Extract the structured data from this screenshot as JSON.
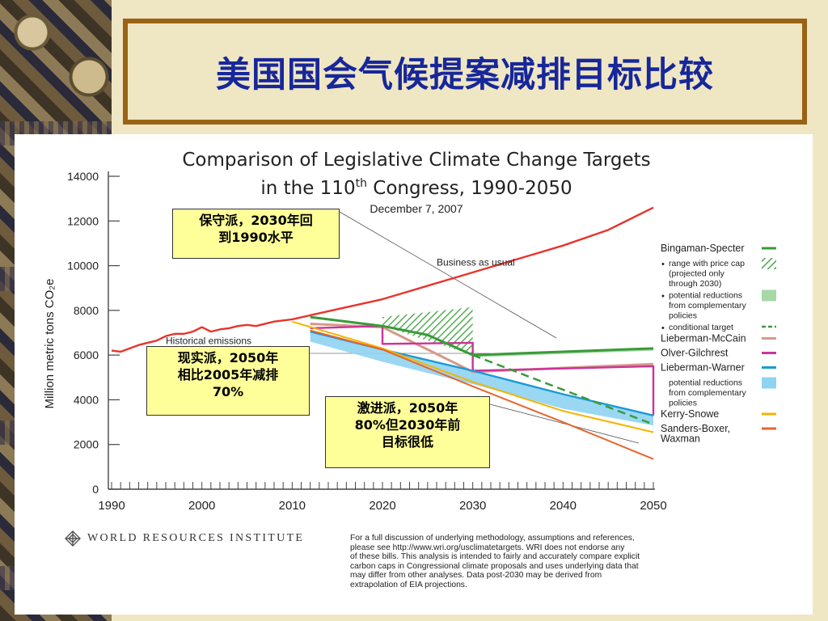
{
  "slide": {
    "title": "美国国会气候提案减排目标比较",
    "callouts": [
      {
        "id": "conservative",
        "lines": [
          "保守派，2030年回",
          "到1990水平"
        ]
      },
      {
        "id": "realist",
        "lines": [
          "现实派，2050年",
          "相比2005年减排",
          "70%"
        ]
      },
      {
        "id": "radical",
        "lines": [
          "激进派，2050年",
          "80%但2030年前",
          "目标很低"
        ]
      }
    ]
  },
  "chart_data": {
    "type": "line",
    "title": "Comparison of Legislative Climate Change Targets",
    "title_line2_prefix": "in the 110",
    "title_line2_sup": "th",
    "title_line2_suffix": " Congress, 1990-2050",
    "subtitle": "December 7, 2007",
    "ylabel": "Million metric tons CO₂e",
    "xlim": [
      1990,
      2050
    ],
    "ylim": [
      0,
      14000
    ],
    "x_ticks": [
      1990,
      2000,
      2010,
      2020,
      2030,
      2040,
      2050
    ],
    "y_ticks": [
      0,
      2000,
      4000,
      6000,
      8000,
      10000,
      12000,
      14000
    ],
    "annotations": [
      {
        "text": "Business as usual",
        "x": 2026,
        "y": 10000
      },
      {
        "text": "Historical emissions",
        "x": 1996,
        "y": 6500
      }
    ],
    "colors": {
      "bau": "#e8342c",
      "bingaman": "#3a9a3a",
      "bingaman_hatch": "#4aa84a",
      "bingaman_comp": "#a8d8a8",
      "lieberman_mccain": "#d49a88",
      "olver": "#cc3399",
      "lw": "#1a9ad6",
      "lw_band": "#8fd3f2",
      "kerry": "#f5b400",
      "sanders": "#e8642c"
    },
    "series": [
      {
        "key": "bau",
        "points": [
          [
            1990,
            6200
          ],
          [
            1991,
            6150
          ],
          [
            1992,
            6300
          ],
          [
            1993,
            6450
          ],
          [
            1994,
            6550
          ],
          [
            1995,
            6650
          ],
          [
            1996,
            6850
          ],
          [
            1997,
            6950
          ],
          [
            1998,
            6950
          ],
          [
            1999,
            7050
          ],
          [
            2000,
            7250
          ],
          [
            2001,
            7050
          ],
          [
            2002,
            7150
          ],
          [
            2003,
            7200
          ],
          [
            2004,
            7300
          ],
          [
            2005,
            7350
          ],
          [
            2006,
            7300
          ],
          [
            2007,
            7400
          ],
          [
            2008,
            7500
          ],
          [
            2010,
            7600
          ],
          [
            2015,
            8050
          ],
          [
            2020,
            8500
          ],
          [
            2025,
            9100
          ],
          [
            2030,
            9700
          ],
          [
            2035,
            10300
          ],
          [
            2040,
            10900
          ],
          [
            2045,
            11600
          ],
          [
            2050,
            12600
          ]
        ]
      },
      {
        "key": "lieberman_mccain",
        "points": [
          [
            2012,
            7400
          ],
          [
            2020,
            7250
          ],
          [
            2030,
            5250
          ],
          [
            2050,
            5600
          ]
        ]
      },
      {
        "key": "olver",
        "points": [
          [
            2012,
            7200
          ],
          [
            2020,
            7300
          ],
          [
            2020,
            6500
          ],
          [
            2030,
            6550
          ],
          [
            2030,
            5300
          ],
          [
            2050,
            5500
          ],
          [
            2050,
            3300
          ]
        ]
      },
      {
        "key": "bingaman",
        "points": [
          [
            2012,
            7700
          ],
          [
            2020,
            7300
          ],
          [
            2025,
            6900
          ],
          [
            2030,
            6000
          ],
          [
            2050,
            6300
          ]
        ]
      },
      {
        "key": "lw",
        "points": [
          [
            2012,
            7050
          ],
          [
            2020,
            6250
          ],
          [
            2030,
            5300
          ],
          [
            2040,
            4250
          ],
          [
            2050,
            3300
          ]
        ]
      },
      {
        "key": "kerry",
        "points": [
          [
            2010,
            7500
          ],
          [
            2020,
            6300
          ],
          [
            2030,
            4800
          ],
          [
            2040,
            3500
          ],
          [
            2050,
            2550
          ]
        ]
      },
      {
        "key": "sanders",
        "points": [
          [
            2012,
            7100
          ],
          [
            2020,
            6250
          ],
          [
            2030,
            4600
          ],
          [
            2040,
            3000
          ],
          [
            2050,
            1350
          ]
        ]
      }
    ],
    "bingaman_conditional": [
      [
        2030,
        6000
      ],
      [
        2050,
        2900
      ]
    ],
    "bingaman_price_cap_band": {
      "x": [
        2020,
        2030
      ],
      "upper": [
        7700,
        8150
      ],
      "lower": [
        7300,
        6000
      ]
    },
    "bingaman_comp_band": {
      "x": [
        2030,
        2050
      ],
      "upper": [
        6000,
        6300
      ],
      "lower": [
        5900,
        6200
      ]
    },
    "lw_comp_band": {
      "x": [
        2012,
        2020,
        2030,
        2040,
        2050
      ],
      "upper": [
        7050,
        6250,
        5300,
        4250,
        3300
      ],
      "lower": [
        6600,
        5700,
        4700,
        3600,
        2850
      ]
    },
    "legend": [
      {
        "label": "Bingaman-Specter",
        "swatch": "line",
        "color": "#3a9a3a",
        "bold": true
      },
      {
        "label": "range with price cap (projected only through 2030)",
        "lines": [
          "range with price cap",
          "(projected only",
          "through 2030)"
        ],
        "bullet": true,
        "swatch": "hatch",
        "color": "#4aa84a"
      },
      {
        "label": "potential reductions from complementary policies",
        "lines": [
          "potential reductions",
          "from complementary",
          "policies"
        ],
        "bullet": true,
        "swatch": "box",
        "color": "#a8d8a8"
      },
      {
        "label": "conditional target",
        "lines": [
          "conditional target"
        ],
        "bullet": true,
        "swatch": "dash",
        "color": "#3a9a3a"
      },
      {
        "label": "Lieberman-McCain",
        "swatch": "line",
        "color": "#d49a88",
        "bold": true
      },
      {
        "label": "Olver-Gilchrest",
        "swatch": "line",
        "color": "#cc3399",
        "bold": true
      },
      {
        "label": "Lieberman-Warner",
        "swatch": "line",
        "color": "#1a9ad6",
        "bold": true
      },
      {
        "label": "potential reductions from complementary policies",
        "lines": [
          "potential reductions",
          "from complementary",
          "policies"
        ],
        "bullet": false,
        "swatch": "box",
        "color": "#8fd3f2"
      },
      {
        "label": "Kerry-Snowe",
        "swatch": "line",
        "color": "#f5b400",
        "bold": true
      },
      {
        "label": "Sanders-Boxer, Waxman",
        "lines": [
          "Sanders-Boxer,",
          "Waxman"
        ],
        "swatch": "line",
        "color": "#e8642c",
        "bold": true
      }
    ]
  },
  "footer": {
    "org": "WORLD RESOURCES INSTITUTE",
    "note_lines": [
      "For a full discussion of underlying methodology, assumptions and references,",
      "please see http://www.wri.org/usclimatetargets. WRI does not endorse any",
      "of these bills. This analysis is intended to fairly and accurately compare explicit",
      "carbon caps in Congressional climate proposals and uses underlying data that",
      "may differ from other analyses.  Data post-2030 may be derived from",
      "extrapolation of EIA projections."
    ]
  }
}
